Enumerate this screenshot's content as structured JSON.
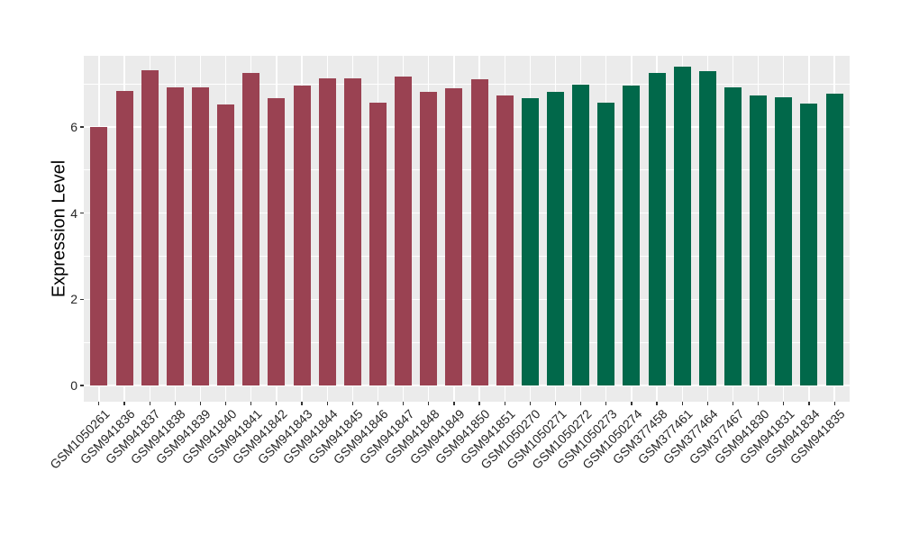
{
  "figure": {
    "background": "#ffffff",
    "panel_background": "#ebebeb",
    "gridline_color": "#ffffff",
    "tick_color": "#333333",
    "axis_text_color": "#262626",
    "axis_title_color": "#000000"
  },
  "chart_data": {
    "type": "bar",
    "title": "",
    "xlabel": "",
    "ylabel": "Expression Level",
    "ylim": [
      0,
      7.65
    ],
    "yticks_major": [
      0,
      2,
      4,
      6
    ],
    "yticks_minor": [
      1,
      3,
      5,
      7
    ],
    "grid": true,
    "legend": false,
    "x_label_angle": 45,
    "categories": [
      "GSM1050261",
      "GSM941836",
      "GSM941837",
      "GSM941838",
      "GSM941839",
      "GSM941840",
      "GSM941841",
      "GSM941842",
      "GSM941843",
      "GSM941844",
      "GSM941845",
      "GSM941846",
      "GSM941847",
      "GSM941848",
      "GSM941849",
      "GSM941850",
      "GSM941851",
      "GSM1050270",
      "GSM1050271",
      "GSM1050272",
      "GSM1050273",
      "GSM1050274",
      "GSM377458",
      "GSM377461",
      "GSM377464",
      "GSM377467",
      "GSM941830",
      "GSM941831",
      "GSM941834",
      "GSM941835"
    ],
    "values": [
      6.0,
      6.83,
      7.31,
      6.92,
      6.92,
      6.52,
      7.25,
      6.66,
      6.96,
      7.12,
      7.13,
      6.57,
      7.17,
      6.82,
      6.9,
      7.1,
      6.73,
      6.67,
      6.82,
      6.99,
      6.57,
      6.97,
      7.26,
      7.41,
      7.29,
      6.91,
      6.73,
      6.69,
      6.54,
      6.77
    ],
    "groups": [
      "g1",
      "g1",
      "g1",
      "g1",
      "g1",
      "g1",
      "g1",
      "g1",
      "g1",
      "g1",
      "g1",
      "g1",
      "g1",
      "g1",
      "g1",
      "g1",
      "g1",
      "g2",
      "g2",
      "g2",
      "g2",
      "g2",
      "g2",
      "g2",
      "g2",
      "g2",
      "g2",
      "g2",
      "g2",
      "g2"
    ],
    "group_colors": {
      "g1": "#9a4252",
      "g2": "#01684a"
    }
  }
}
